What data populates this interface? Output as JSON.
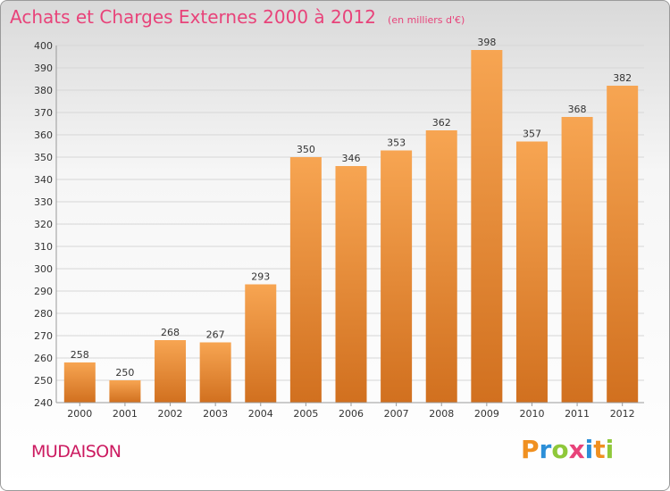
{
  "header": {
    "title": "Achats et Charges Externes 2000 à 2012",
    "subtitle": "(en milliers d'€)"
  },
  "footer": {
    "commune": "MUDAISON",
    "logo_text": "Proxiti"
  },
  "colors": {
    "title": "#e8437a",
    "commune": "#cc1a60",
    "bar_light": "#f7a552",
    "bar_dark": "#d1701f",
    "logo": [
      "#f09020",
      "#2c8fd8",
      "#8fc83a",
      "#e8437a",
      "#2c8fd8",
      "#f09020",
      "#8fc83a"
    ]
  },
  "chart_data": {
    "type": "bar",
    "categories": [
      "2000",
      "2001",
      "2002",
      "2003",
      "2004",
      "2005",
      "2006",
      "2007",
      "2008",
      "2009",
      "2010",
      "2011",
      "2012"
    ],
    "values": [
      258,
      250,
      268,
      267,
      293,
      350,
      346,
      353,
      362,
      398,
      357,
      368,
      382
    ],
    "ylim": [
      240,
      400
    ],
    "yticks": [
      240,
      250,
      260,
      270,
      280,
      290,
      300,
      310,
      320,
      330,
      340,
      350,
      360,
      370,
      380,
      390,
      400
    ],
    "grid": true,
    "data_labels": true
  }
}
